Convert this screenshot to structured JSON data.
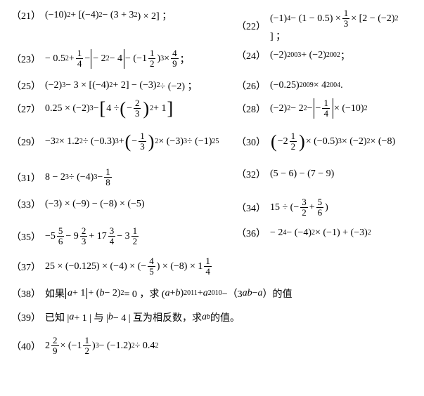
{
  "rows": [
    {
      "gap": 8,
      "left": {
        "num": "（21）",
        "html": "(−10)<sup>2</sup> + [(−4)<sup>2</sup> − (3 + 3<sup>2</sup>) × 2] ；"
      },
      "right": {
        "num": "（22）",
        "html": "(−1)<sup>4</sup> − (1 − 0.5) × <span class='frac'><span class='n'>1</span><span class='d'>3</span></span> × [2 − (−2)<sup>2</sup>] ；"
      }
    },
    {
      "gap": 14,
      "left": {
        "num": "（23）",
        "html": "− 0.5<sup>2</sup> + <span class='frac'><span class='n'>1</span><span class='d'>4</span></span> − <span class='abs tall'>− 2<sup>2</sup> − 4</span> − (−1<span class='frac'><span class='n'>1</span><span class='d'>2</span></span>)<sup>3</sup> × <span class='frac'><span class='n'>4</span><span class='d'>9</span></span> ；"
      },
      "right": {
        "num": "（24）",
        "html": "(−2)<sup>2003</sup> + (−2)<sup>2002</sup> ；"
      }
    },
    {
      "gap": 8,
      "left": {
        "num": "（25）",
        "html": "(−2)<sup>3</sup> − 3 × [(−4)<sup>2</sup> + 2] − (−3)<sup>2</sup> ÷ (−2) ；"
      },
      "right": {
        "num": "（26）",
        "html": "(−0.25)<sup>2009</sup> × 4<sup>2004</sup>."
      }
    },
    {
      "gap": 18,
      "left": {
        "num": "（27）",
        "html": "0.25 × (−2)<sup>3</sup> − <span class='brk-l'>[</span>4 ÷ <span class='paren-l'>(</span>− <span class='frac'><span class='n'>2</span><span class='d'>3</span></span><span class='paren-r'>)</span><sup>2</sup> + 1<span class='brk-r'>]</span>"
      },
      "right": {
        "num": "（28）",
        "html": "(−2)<sup>2</sup> − 2<sup>2</sup> − <span class='abs tall'>− <span class='frac'><span class='n'>1</span><span class='d'>4</span></span></span> × (−10)<sup>2</sup>"
      }
    },
    {
      "gap": 22,
      "left": {
        "num": "（29）",
        "html": "−3<sup>2</sup> × 1.2<sup>2</sup> ÷ (−0.3)<sup>3</sup> + <span class='paren-l'>(</span>− <span class='frac'><span class='n'>1</span><span class='d'>3</span></span><span class='paren-r'>)</span><sup>2</sup> × (−3)<sup>3</sup> ÷ (−1)<sup>25</sup>"
      },
      "right": {
        "num": "（30）",
        "html": "<span class='paren-l'>(</span>−2<span class='frac'><span class='n'>1</span><span class='d'>2</span></span><span class='paren-r'>)</span> × (−0.5)<sup>3</sup> × (−2)<sup>2</sup> × (−8)"
      }
    },
    {
      "gap": 14,
      "left": {
        "num": "（31）",
        "html": "8 − 2<sup>3</sup> ÷ (−4)<sup>3</sup> − <span class='frac'><span class='n'>1</span><span class='d'>8</span></span>"
      },
      "right": {
        "num": "（32）",
        "html": "(5 − 6) − (7 − 9)"
      }
    },
    {
      "gap": 12,
      "left": {
        "num": "（33）",
        "html": "(−3) × (−9) − (−8) × (−5)"
      },
      "right": {
        "num": "（34）",
        "html": "15 ÷ (− <span class='frac'><span class='n'>3</span><span class='d'>2</span></span> + <span class='frac'><span class='n'>5</span><span class='d'>6</span></span>)"
      }
    },
    {
      "gap": 14,
      "left": {
        "num": "（35）",
        "html": "−5<span class='frac'><span class='n'>5</span><span class='d'>6</span></span> − 9<span class='frac'><span class='n'>2</span><span class='d'>3</span></span> + 17<span class='frac'><span class='n'>3</span><span class='d'>4</span></span> − 3<span class='frac'><span class='n'>1</span><span class='d'>2</span></span>"
      },
      "right": {
        "num": "（36）",
        "html": "− 2<sup>4</sup> − (−4)<sup>2</sup> × (−1) + (−3)<sup>2</sup>"
      }
    },
    {
      "gap": 14,
      "left": {
        "num": "（37）",
        "html": "25 × (−0.125) × (−4) × (− <span class='frac'><span class='n'>4</span><span class='d'>5</span></span>) × (−8) × 1<span class='frac'><span class='n'>1</span><span class='d'>4</span></span>"
      }
    },
    {
      "gap": 14,
      "left": {
        "num": "（38）",
        "html": "如果 <span class='abs'><span class='it'>a</span> + 1</span> + (<span class='it'>b</span> − 2)<sup>2</sup> = 0 ，求 (<span class='it'>a</span> + <span class='it'>b</span>)<sup>2011</sup> + <span class='it'>a</span><sup>2010</sup> −（3<span class='it'>ab</span> − <span class='it'>a</span>）的值"
      }
    },
    {
      "gap": 16,
      "left": {
        "num": "（39）",
        "html": "已知 | <span class='it'>a</span> + 1 | 与 | <span class='it'>b</span> − 4 | 互为相反数，求 <span class='it'>a</span><sup><span class='it'>b</span></sup> 的值。"
      }
    },
    {
      "gap": 8,
      "left": {
        "num": "（40）",
        "html": "2<span class='frac'><span class='n'>2</span><span class='d'>9</span></span> × (−1<span class='frac'><span class='n'>1</span><span class='d'>2</span></span>)<sup>3</sup> − (−1.2)<sup>2</sup> ÷ 0.4<sup>2</sup>"
      }
    }
  ]
}
